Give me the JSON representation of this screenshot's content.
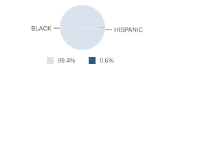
{
  "chart_data": {
    "type": "pie",
    "categories": [
      "BLACK",
      "HISPANIC"
    ],
    "values": [
      99.4,
      0.6
    ],
    "value_labels": [
      "99.4%",
      "0.6%"
    ],
    "colors": [
      "#dae3ed",
      "#2f5b82"
    ]
  }
}
